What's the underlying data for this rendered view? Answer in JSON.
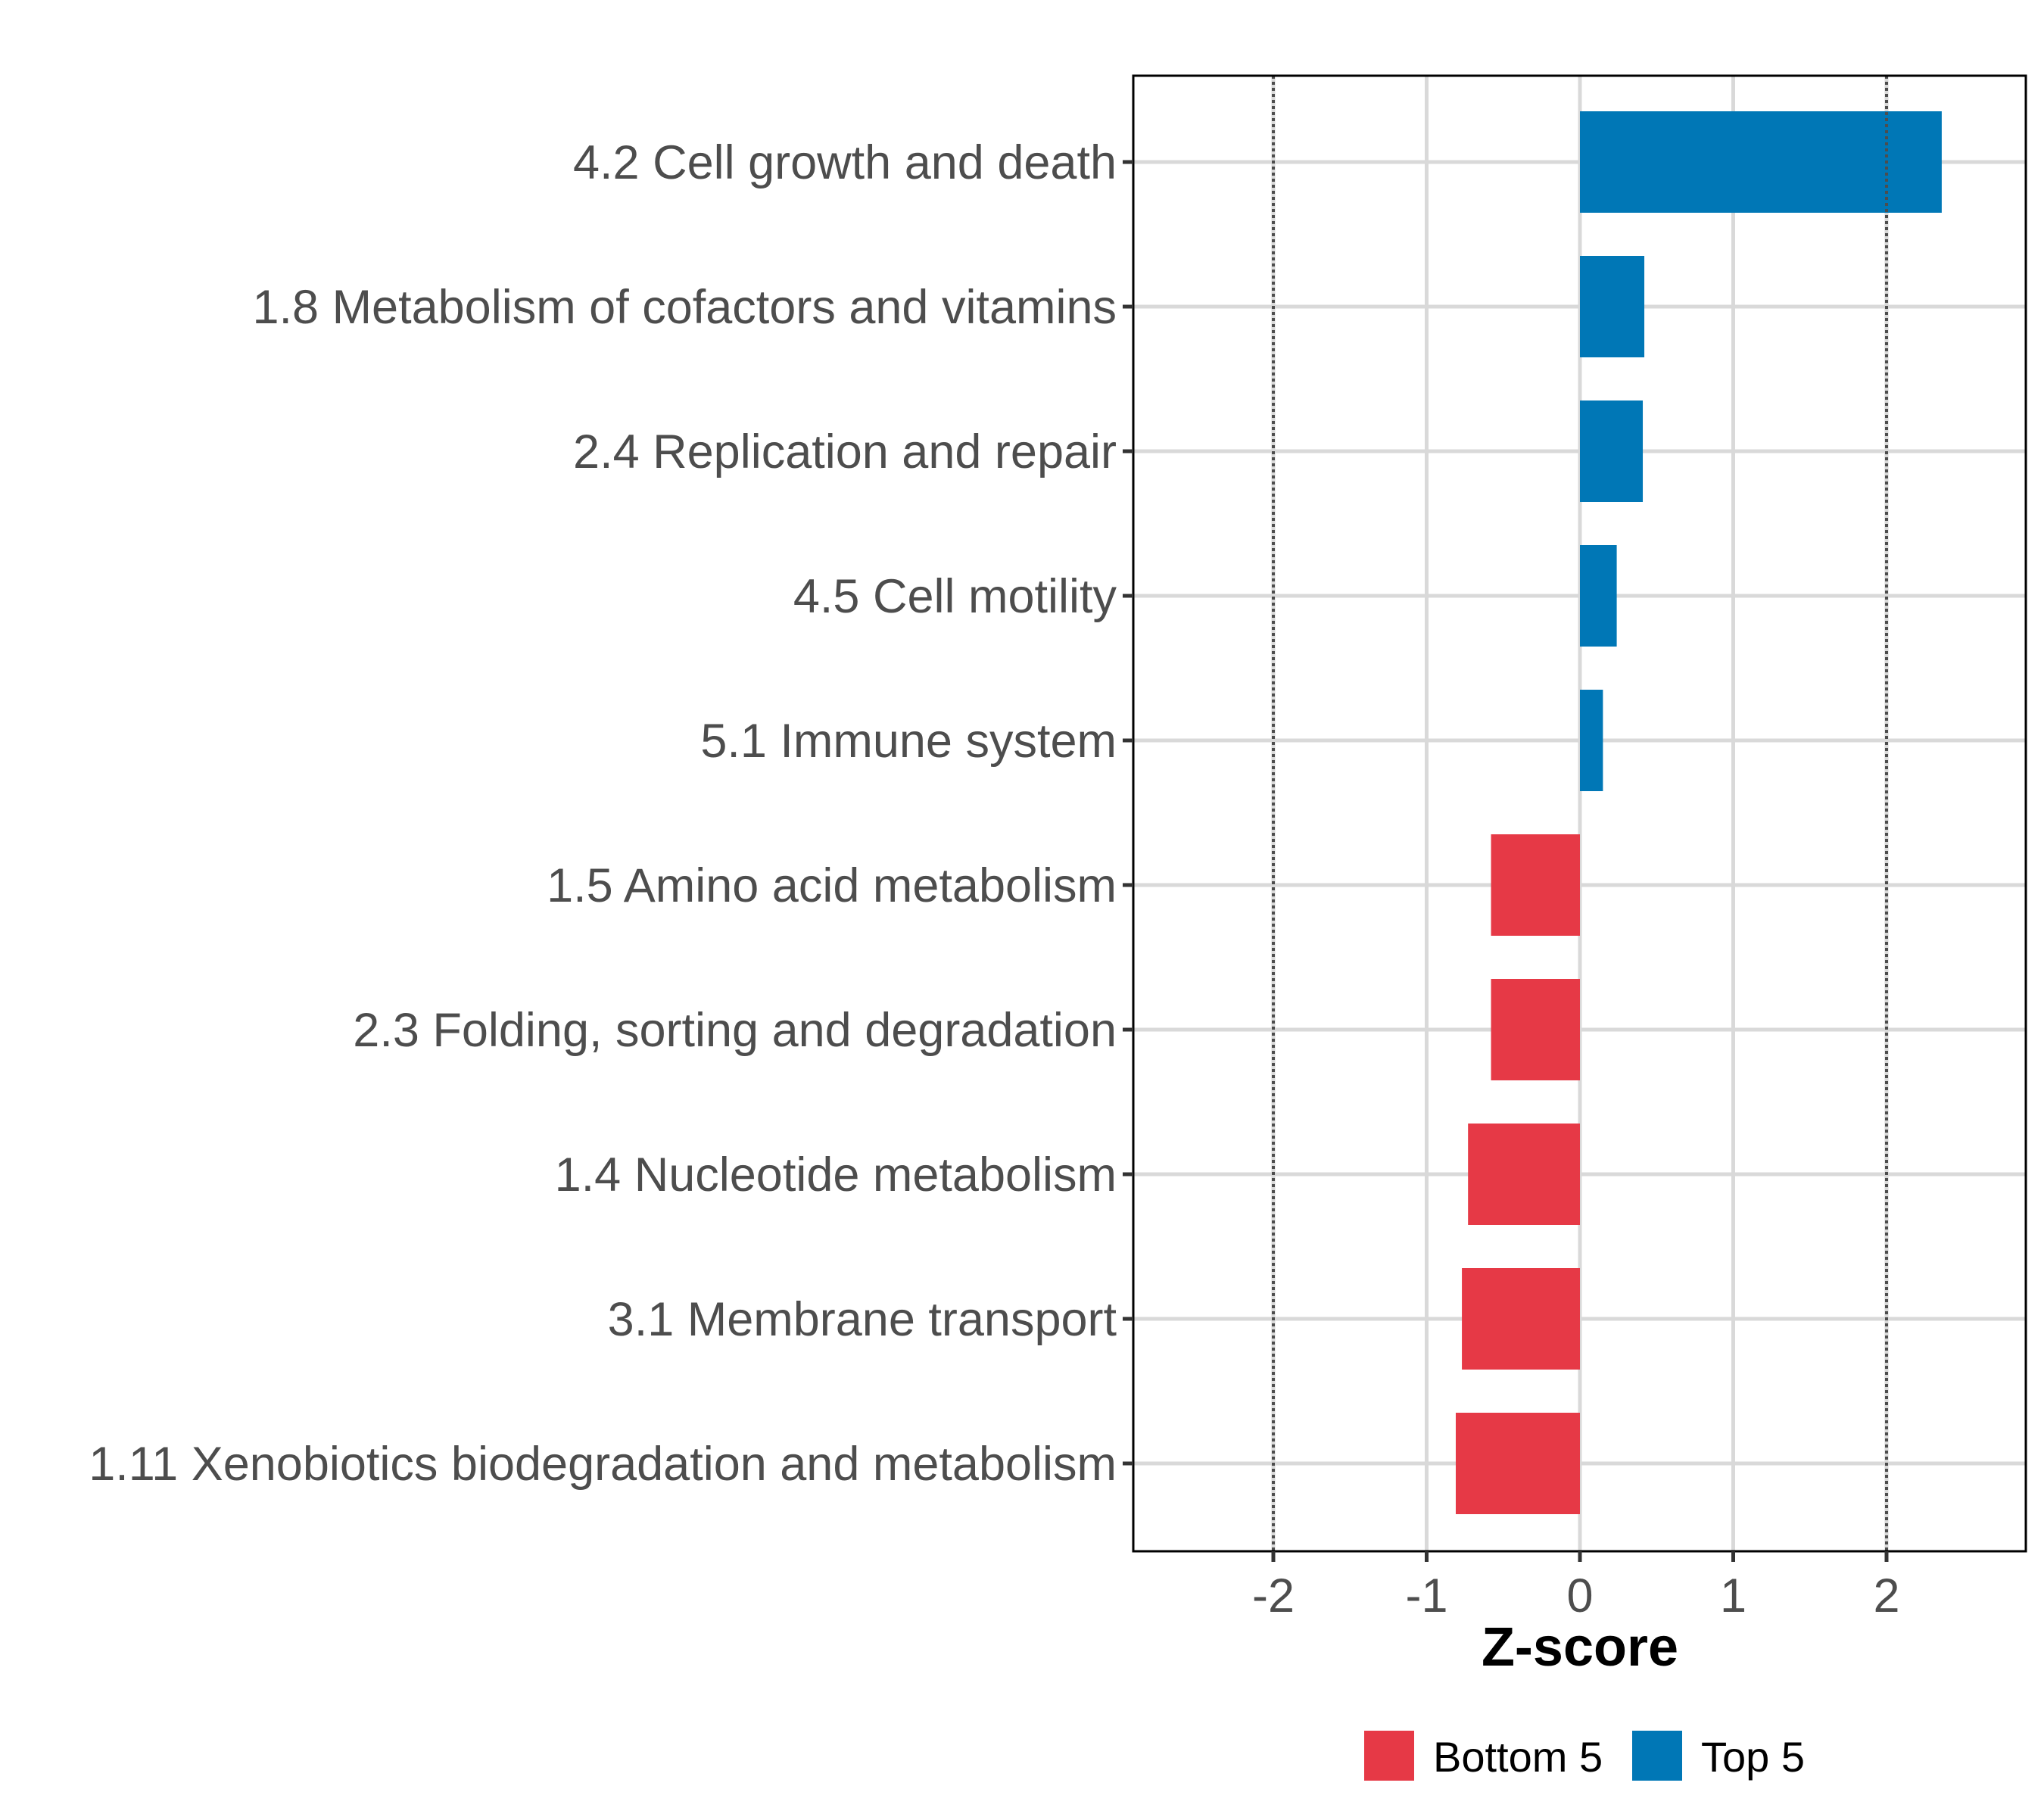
{
  "chart_data": {
    "type": "bar",
    "orientation": "horizontal",
    "title": "",
    "xlabel": "Z-score",
    "ylabel": "",
    "xlim": [
      -2.9,
      2.9
    ],
    "xticks": [
      -2,
      -1,
      0,
      1,
      2
    ],
    "xtick_labels": [
      "-2",
      "-1",
      "0",
      "1",
      "2"
    ],
    "reference_lines": [
      -2,
      2
    ],
    "grid": true,
    "legend_position": "bottom",
    "categories": [
      "4.2 Cell growth and death",
      "1.8 Metabolism of cofactors and vitamins",
      "2.4 Replication and repair",
      "4.5 Cell motility",
      "5.1 Immune system",
      "1.5 Amino acid metabolism",
      "2.3 Folding, sorting and degradation",
      "1.4 Nucleotide metabolism",
      "3.1 Membrane transport",
      "1.11 Xenobiotics biodegradation and metabolism"
    ],
    "values": [
      2.36,
      0.42,
      0.41,
      0.24,
      0.15,
      -0.58,
      -0.58,
      -0.73,
      -0.77,
      -0.81
    ],
    "groups": [
      "Top 5",
      "Top 5",
      "Top 5",
      "Top 5",
      "Top 5",
      "Bottom 5",
      "Bottom 5",
      "Bottom 5",
      "Bottom 5",
      "Bottom 5"
    ],
    "series": [
      {
        "name": "Bottom 5",
        "color": "#E63946"
      },
      {
        "name": "Top 5",
        "color": "#0077B6"
      }
    ]
  },
  "colors": {
    "top": "#0077B6",
    "bottom": "#E63946",
    "grid": "#D9D9D9",
    "reference_line": "#4d4d4d",
    "axis": "#000000"
  }
}
